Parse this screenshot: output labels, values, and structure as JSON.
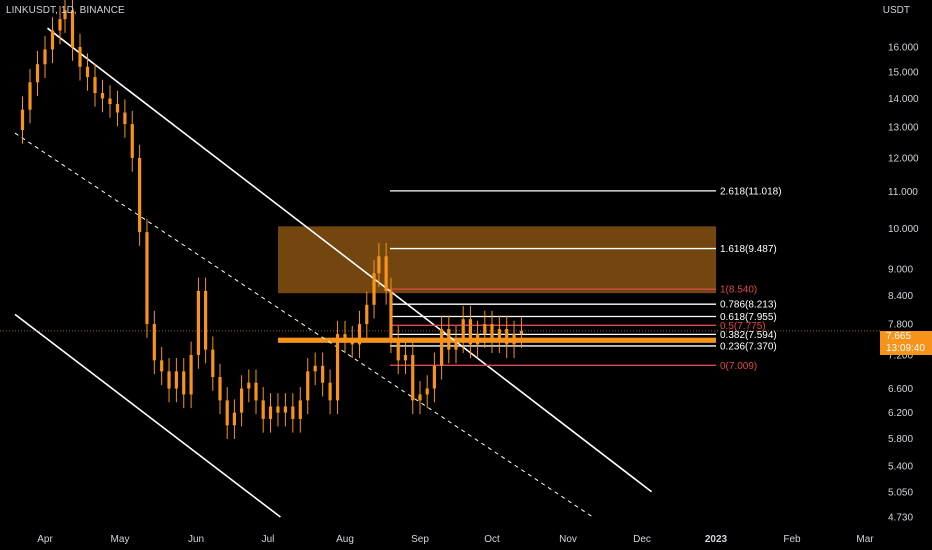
{
  "header": {
    "symbol": "LINKUSDT, 1D, BINANCE",
    "currency": "USDT"
  },
  "price_tag": {
    "price": "7.665",
    "countdown": "13:09:40"
  },
  "colors": {
    "background": "#000000",
    "candle": "#f7931a",
    "zone": "#7a4a10",
    "fib_white": "#ffffff",
    "fib_red": "#e0464a",
    "channel": "#ffffff",
    "axis_text": "#d1d4dc"
  },
  "chart_data": {
    "type": "candlestick",
    "x_axis": [
      "Apr",
      "May",
      "Jun",
      "Jul",
      "Aug",
      "Sep",
      "Oct",
      "Nov",
      "Dec",
      "2023",
      "Feb",
      "Mar"
    ],
    "y_axis_ticks": [
      "16.000",
      "15.000",
      "14.000",
      "13.000",
      "12.000",
      "11.000",
      "10.000",
      "9.000",
      "8.400",
      "7.800",
      "7.200",
      "6.600",
      "6.200",
      "5.800",
      "5.400",
      "5.050",
      "4.730"
    ],
    "y_axis_scale": "log",
    "fib_levels": [
      {
        "label": "2.618(11.018)",
        "value": 11.018,
        "color": "white"
      },
      {
        "label": "1.618(9.487)",
        "value": 9.487,
        "color": "white"
      },
      {
        "label": "1(8.540)",
        "value": 8.54,
        "color": "red"
      },
      {
        "label": "0.786(8.213)",
        "value": 8.213,
        "color": "white"
      },
      {
        "label": "0.618(7.955)",
        "value": 7.955,
        "color": "white"
      },
      {
        "label": "0.5(7.775)",
        "value": 7.775,
        "color": "red"
      },
      {
        "label": "0.382(7.594)",
        "value": 7.594,
        "color": "white"
      },
      {
        "label": "0.236(7.370)",
        "value": 7.37,
        "color": "white"
      },
      {
        "label": "0(7.009)",
        "value": 7.009,
        "color": "red"
      }
    ],
    "zones": [
      {
        "from_date": "2022-07-01",
        "to_date": "2022-10-31",
        "low": 8.45,
        "high": 10.05,
        "name": "supply zone"
      },
      {
        "from_date": "2022-07-01",
        "to_date": "2022-10-31",
        "low": 7.43,
        "high": 7.53,
        "name": "support band"
      }
    ],
    "channel_lines": [
      {
        "style": "solid",
        "from": [
          "2022-04-02",
          16.8
        ],
        "to": [
          "2022-12-05",
          5.05
        ]
      },
      {
        "style": "dashed",
        "from": [
          "2022-03-20",
          12.8
        ],
        "to": [
          "2022-11-11",
          4.73
        ]
      },
      {
        "style": "solid",
        "from": [
          "2022-03-20",
          8.0
        ],
        "to": [
          "2022-07-06",
          4.73
        ]
      }
    ],
    "candles": [
      {
        "d": "2022-03-20",
        "c": 12.9
      },
      {
        "d": "2022-03-23",
        "c": 13.6
      },
      {
        "d": "2022-03-26",
        "c": 14.6
      },
      {
        "d": "2022-03-29",
        "c": 15.3
      },
      {
        "d": "2022-04-01",
        "c": 15.9
      },
      {
        "d": "2022-04-04",
        "c": 16.7
      },
      {
        "d": "2022-04-07",
        "c": 17.2
      },
      {
        "d": "2022-04-09",
        "c": 17.6
      },
      {
        "d": "2022-04-12",
        "c": 16.0
      },
      {
        "d": "2022-04-15",
        "c": 15.2
      },
      {
        "d": "2022-04-18",
        "c": 14.8
      },
      {
        "d": "2022-04-21",
        "c": 14.2
      },
      {
        "d": "2022-04-24",
        "c": 14.0
      },
      {
        "d": "2022-04-27",
        "c": 13.8
      },
      {
        "d": "2022-04-30",
        "c": 13.5
      },
      {
        "d": "2022-05-03",
        "c": 13.1
      },
      {
        "d": "2022-05-06",
        "c": 12.0
      },
      {
        "d": "2022-05-09",
        "c": 9.9
      },
      {
        "d": "2022-05-12",
        "c": 7.8
      },
      {
        "d": "2022-05-15",
        "c": 7.1
      },
      {
        "d": "2022-05-18",
        "c": 6.9
      },
      {
        "d": "2022-05-21",
        "c": 6.6
      },
      {
        "d": "2022-05-24",
        "c": 6.9
      },
      {
        "d": "2022-05-27",
        "c": 6.5
      },
      {
        "d": "2022-05-30",
        "c": 7.2
      },
      {
        "d": "2022-06-02",
        "c": 8.5
      },
      {
        "d": "2022-06-05",
        "c": 7.3
      },
      {
        "d": "2022-06-08",
        "c": 6.8
      },
      {
        "d": "2022-06-11",
        "c": 6.4
      },
      {
        "d": "2022-06-14",
        "c": 6.0
      },
      {
        "d": "2022-06-17",
        "c": 6.2
      },
      {
        "d": "2022-06-20",
        "c": 6.6
      },
      {
        "d": "2022-06-23",
        "c": 6.7
      },
      {
        "d": "2022-06-26",
        "c": 6.4
      },
      {
        "d": "2022-06-29",
        "c": 6.1
      },
      {
        "d": "2022-07-02",
        "c": 6.3
      },
      {
        "d": "2022-07-05",
        "c": 6.2
      },
      {
        "d": "2022-07-08",
        "c": 6.3
      },
      {
        "d": "2022-07-11",
        "c": 6.1
      },
      {
        "d": "2022-07-14",
        "c": 6.4
      },
      {
        "d": "2022-07-17",
        "c": 6.9
      },
      {
        "d": "2022-07-20",
        "c": 7.0
      },
      {
        "d": "2022-07-23",
        "c": 6.7
      },
      {
        "d": "2022-07-26",
        "c": 6.4
      },
      {
        "d": "2022-07-29",
        "c": 7.6
      },
      {
        "d": "2022-08-01",
        "c": 7.5
      },
      {
        "d": "2022-08-04",
        "c": 7.4
      },
      {
        "d": "2022-08-07",
        "c": 7.8
      },
      {
        "d": "2022-08-10",
        "c": 8.2
      },
      {
        "d": "2022-08-13",
        "c": 8.9
      },
      {
        "d": "2022-08-15",
        "c": 9.3
      },
      {
        "d": "2022-08-18",
        "c": 8.5
      },
      {
        "d": "2022-08-20",
        "c": 7.5
      },
      {
        "d": "2022-08-23",
        "c": 7.1
      },
      {
        "d": "2022-08-26",
        "c": 7.2
      },
      {
        "d": "2022-08-29",
        "c": 6.4
      },
      {
        "d": "2022-09-01",
        "c": 6.5
      },
      {
        "d": "2022-09-04",
        "c": 6.6
      },
      {
        "d": "2022-09-07",
        "c": 7.0
      },
      {
        "d": "2022-09-10",
        "c": 7.7
      },
      {
        "d": "2022-09-13",
        "c": 7.3
      },
      {
        "d": "2022-09-16",
        "c": 7.5
      },
      {
        "d": "2022-09-19",
        "c": 7.9
      },
      {
        "d": "2022-09-22",
        "c": 7.4
      },
      {
        "d": "2022-09-25",
        "c": 7.6
      },
      {
        "d": "2022-09-28",
        "c": 7.8
      },
      {
        "d": "2022-10-01",
        "c": 7.5
      },
      {
        "d": "2022-10-04",
        "c": 7.7
      },
      {
        "d": "2022-10-07",
        "c": 7.4
      },
      {
        "d": "2022-10-10",
        "c": 7.6
      },
      {
        "d": "2022-10-13",
        "c": 7.665
      }
    ]
  }
}
